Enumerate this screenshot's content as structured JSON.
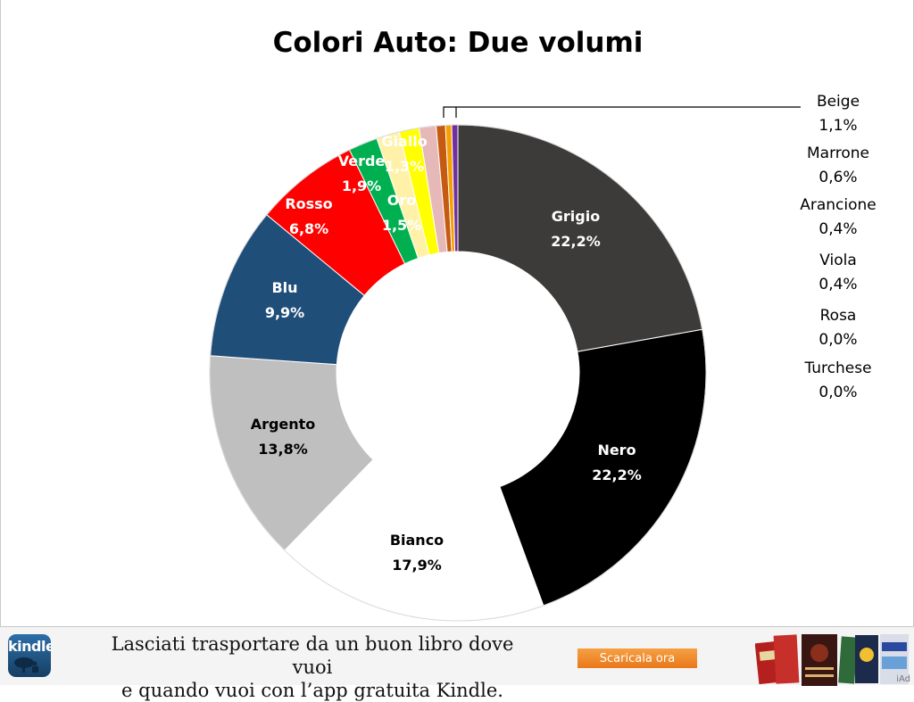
{
  "chart_data": {
    "type": "pie",
    "title": "Colori Auto: Due volumi",
    "categories": [
      "Grigio",
      "Nero",
      "Bianco",
      "Argento",
      "Blu",
      "Rosso",
      "Verde",
      "Oro",
      "Giallo",
      "Rosa",
      "Beige",
      "Marrone",
      "Arancione",
      "Viola",
      "Turchese"
    ],
    "values": [
      22.2,
      22.2,
      17.9,
      13.8,
      9.9,
      6.8,
      1.9,
      1.5,
      1.3,
      0.0,
      1.1,
      0.6,
      0.4,
      0.4,
      0.0
    ],
    "labels": [
      "22,2%",
      "22,2%",
      "17,9%",
      "13,8%",
      "9,9%",
      "6,8%",
      "1,9%",
      "1,5%",
      "1,3%",
      "0,0%",
      "1,1%",
      "0,6%",
      "0,4%",
      "0,4%",
      "0,0%"
    ],
    "colors": [
      "#3d3b3a",
      "#000000",
      "#ffffff",
      "#bfbfbf",
      "#1f4e79",
      "#ff0000",
      "#00b050",
      "#fff2a8",
      "#ffff00",
      "#f8cbad",
      "#e6b8b7",
      "#c55a11",
      "#f5a000",
      "#7030a0",
      "#00b0f0"
    ],
    "donut": true,
    "legend": "none",
    "callouts": [
      "Beige",
      "Marrone",
      "Arancione",
      "Viola",
      "Rosa",
      "Turchese"
    ]
  },
  "ad": {
    "app_name": "kindle",
    "line1": "Lasciati trasportare da un buon libro dove vuoi",
    "line2": "e quando vuoi con l’app gratuita Kindle.",
    "cta": "Scaricala ora",
    "network": "iAd"
  }
}
